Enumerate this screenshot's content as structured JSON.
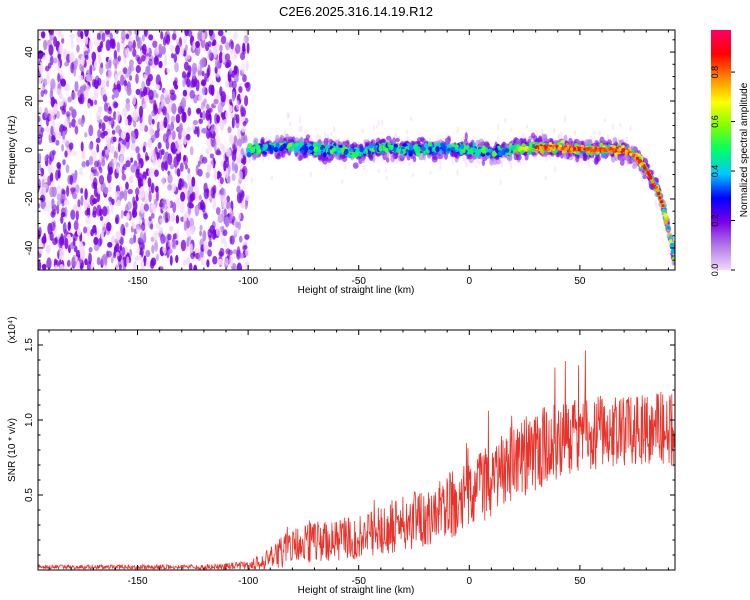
{
  "figure": {
    "title": "C2E6.2025.316.14.19.R12"
  },
  "chart_data": [
    {
      "id": "spectrogram",
      "type": "heatmap",
      "xlabel": "Height of straight line (km)",
      "ylabel": "Frequency (Hz)",
      "xlim": [
        -195,
        93
      ],
      "ylim": [
        -49,
        49
      ],
      "x_ticks": [
        -150,
        -100,
        -50,
        0,
        50
      ],
      "x_tick_labels": [
        "-150",
        "-100",
        "-50",
        "0",
        "50"
      ],
      "y_ticks": [
        -40,
        -20,
        0,
        20,
        40
      ],
      "y_tick_labels": [
        "-40",
        "-20",
        "0",
        "20",
        "40"
      ],
      "noise_region": [
        -195,
        -100
      ],
      "ridge": {
        "x": [
          -100,
          -90,
          -80,
          -70,
          -60,
          -50,
          -40,
          -30,
          -20,
          -10,
          0,
          10,
          20,
          30,
          40,
          50,
          60,
          70,
          75,
          80,
          85,
          88,
          90,
          92,
          93
        ],
        "y": [
          0,
          1,
          2,
          0,
          0,
          -1,
          1,
          0,
          0,
          1,
          0,
          -1,
          0,
          1,
          1,
          0,
          0,
          0,
          -2,
          -8,
          -16,
          -24,
          -32,
          -40,
          -46
        ]
      },
      "colorbar": {
        "label": "Normalized spectral amplitude",
        "range": [
          0,
          0.97
        ],
        "ticks": [
          0.0,
          0.2,
          0.4,
          0.6,
          0.8
        ],
        "tick_labels": [
          "0.0",
          "0.2",
          "0.4",
          "0.6",
          "0.8"
        ],
        "colors": [
          "#f2d8f8",
          "#b27ae8",
          "#7a00e6",
          "#0000ff",
          "#00c8ff",
          "#00ff66",
          "#80ff00",
          "#ffff00",
          "#ff8800",
          "#ff0000",
          "#ff0066"
        ]
      }
    },
    {
      "id": "snr",
      "type": "line",
      "xlabel": "Height of straight line (km)",
      "ylabel": "SNR (10 * v/v)",
      "scale_label": "(x10⁴)",
      "xlim": [
        -195,
        93
      ],
      "ylim": [
        0,
        1.6
      ],
      "x_ticks": [
        -150,
        -100,
        -50,
        0,
        50
      ],
      "x_tick_labels": [
        "-150",
        "-100",
        "-50",
        "0",
        "50"
      ],
      "y_ticks": [
        0.5,
        1.0,
        1.5
      ],
      "y_tick_labels": [
        "0.5",
        "1.0",
        "1.5"
      ],
      "color": "#e8332b",
      "envelope": {
        "x": [
          -195,
          -120,
          -100,
          -90,
          -80,
          -70,
          -60,
          -50,
          -40,
          -30,
          -20,
          -10,
          0,
          10,
          20,
          30,
          40,
          50,
          60,
          70,
          80,
          93
        ],
        "mean": [
          0.02,
          0.02,
          0.03,
          0.08,
          0.15,
          0.18,
          0.2,
          0.22,
          0.27,
          0.31,
          0.36,
          0.42,
          0.5,
          0.6,
          0.7,
          0.8,
          0.87,
          0.9,
          0.92,
          0.93,
          0.94,
          0.95
        ],
        "spread": [
          0.015,
          0.015,
          0.03,
          0.08,
          0.13,
          0.14,
          0.14,
          0.15,
          0.17,
          0.19,
          0.2,
          0.22,
          0.24,
          0.25,
          0.27,
          0.27,
          0.27,
          0.25,
          0.25,
          0.24,
          0.24,
          0.26
        ]
      }
    }
  ]
}
